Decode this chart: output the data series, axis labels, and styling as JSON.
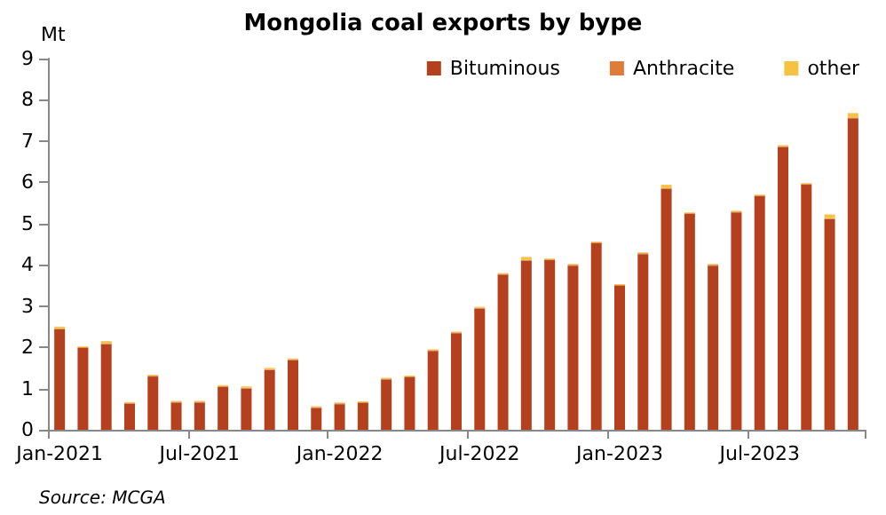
{
  "chart_data": {
    "type": "bar",
    "title": "Mongolia coal exports by bype",
    "ylabel": "Mt",
    "stacked": true,
    "grid": false,
    "legend": "top right",
    "annotations": [
      "Source: MCGA"
    ],
    "categories": [
      "Jan-2021",
      null,
      null,
      null,
      null,
      null,
      "Jul-2021",
      null,
      null,
      null,
      null,
      null,
      "Jan-2022",
      null,
      null,
      null,
      null,
      null,
      "Jul-2022",
      null,
      null,
      null,
      null,
      null,
      "Jan-2023",
      null,
      null,
      null,
      null,
      null,
      "Jul-2023",
      null,
      null,
      null,
      null
    ],
    "ylim": [
      0,
      9
    ],
    "yticks": [
      0,
      1,
      2,
      3,
      4,
      5,
      6,
      7,
      8,
      9
    ],
    "series": [
      {
        "name": "Bituminous",
        "color": "#b5401d",
        "values": [
          2.44,
          1.98,
          2.08,
          0.63,
          1.29,
          0.66,
          0.66,
          1.04,
          1.0,
          1.45,
          1.69,
          0.53,
          0.62,
          0.65,
          1.22,
          1.27,
          1.91,
          2.34,
          2.94,
          3.76,
          4.1,
          4.11,
          3.98,
          4.52,
          3.49,
          4.26,
          5.84,
          5.23,
          3.98,
          5.27,
          5.66,
          6.86,
          5.94,
          5.11,
          7.55
        ]
      },
      {
        "name": "Anthracite",
        "color": "#e07b39",
        "values": [
          0.02,
          0.02,
          0.02,
          0.02,
          0.02,
          0.02,
          0.02,
          0.02,
          0.02,
          0.02,
          0.02,
          0.02,
          0.02,
          0.02,
          0.02,
          0.02,
          0.02,
          0.02,
          0.02,
          0.02,
          0.02,
          0.02,
          0.02,
          0.02,
          0.02,
          0.02,
          0.02,
          0.02,
          0.02,
          0.02,
          0.02,
          0.02,
          0.02,
          0.02,
          0.02
        ]
      },
      {
        "name": "other",
        "color": "#f5c242",
        "values": [
          0.04,
          0.02,
          0.05,
          0.02,
          0.02,
          0.02,
          0.02,
          0.02,
          0.03,
          0.03,
          0.02,
          0.02,
          0.02,
          0.02,
          0.02,
          0.02,
          0.02,
          0.02,
          0.02,
          0.02,
          0.07,
          0.02,
          0.02,
          0.02,
          0.02,
          0.02,
          0.08,
          0.02,
          0.02,
          0.02,
          0.02,
          0.02,
          0.02,
          0.09,
          0.11
        ]
      }
    ]
  }
}
